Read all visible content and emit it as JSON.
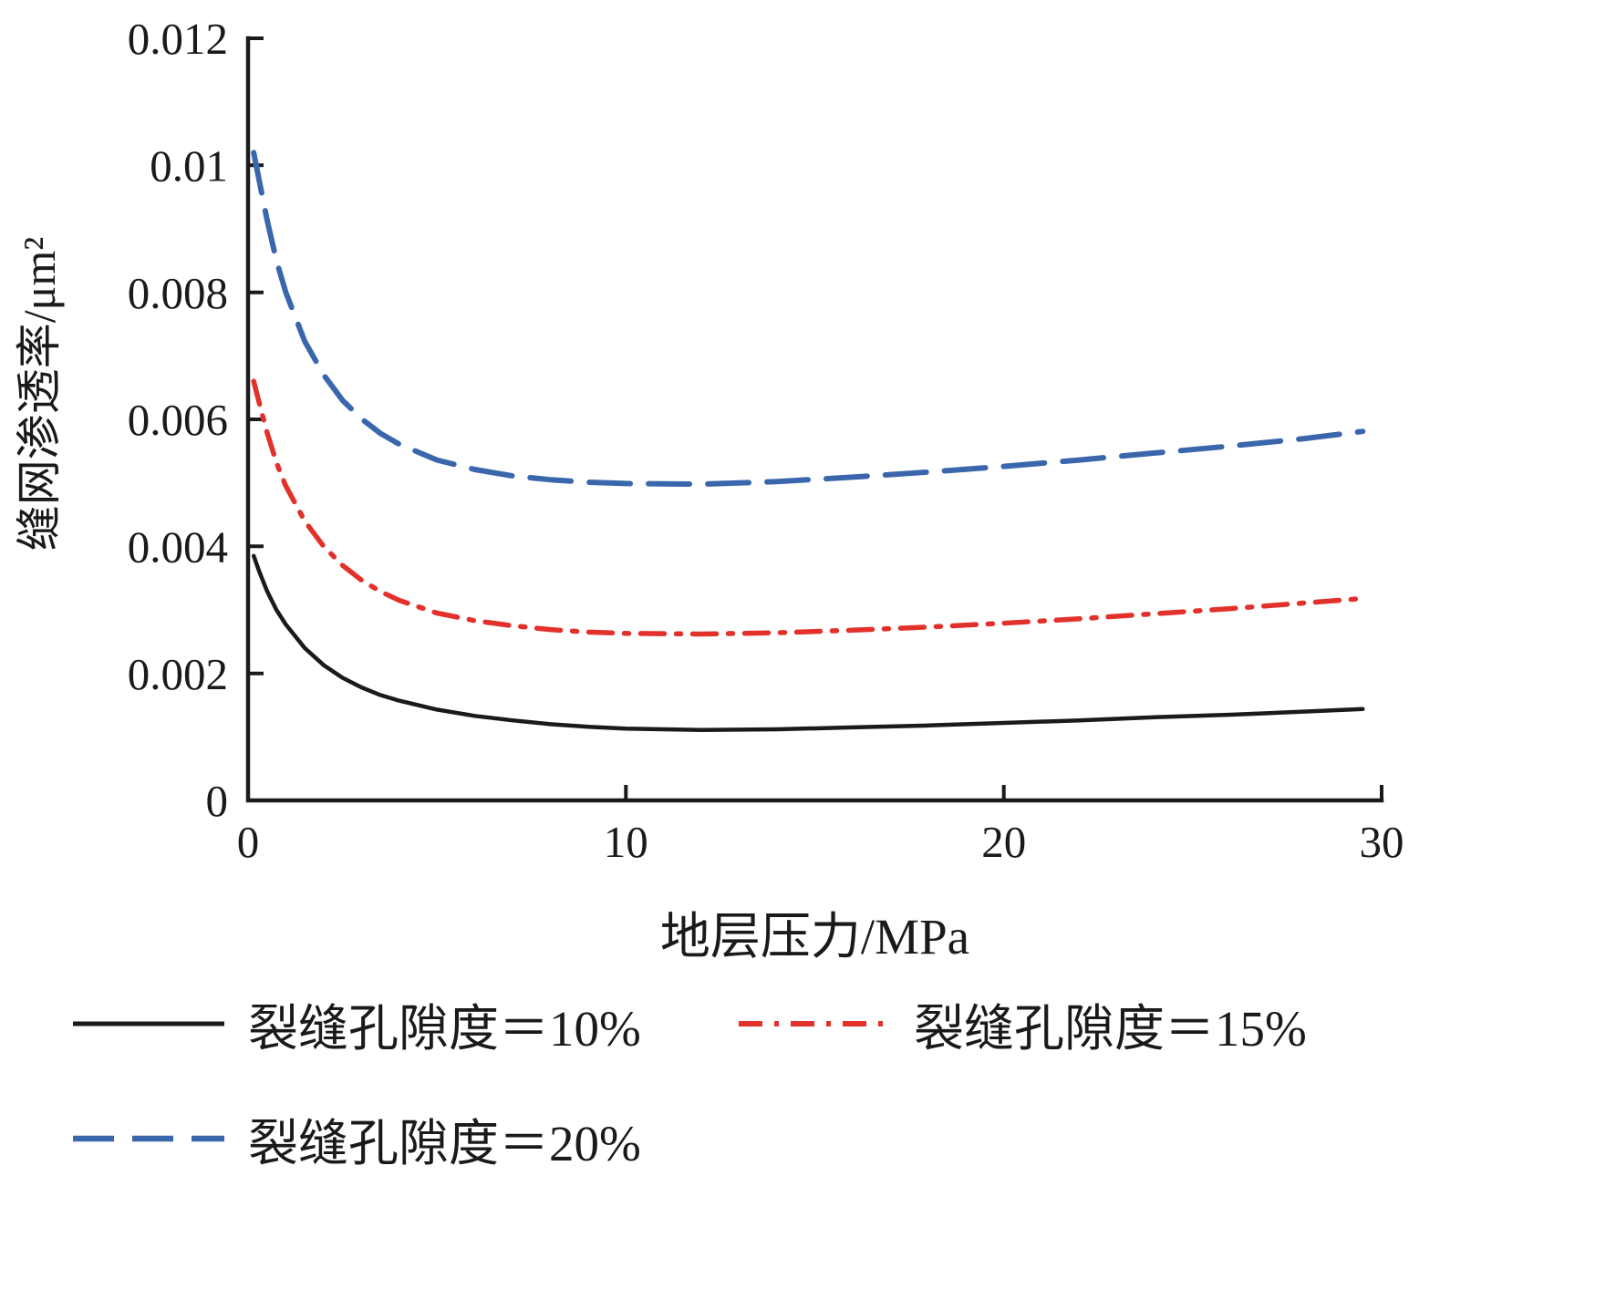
{
  "chart_data": {
    "type": "line",
    "title": "",
    "xlabel": "地层压力/MPa",
    "ylabel": "缝网渗透率/μm²",
    "xlim": [
      0,
      30
    ],
    "ylim": [
      0,
      0.012
    ],
    "grid": false,
    "legend_position": "below",
    "axis_color": "#1a1a1a",
    "background": "#ffffff",
    "xticks": {
      "values": [
        0,
        10,
        20,
        30
      ],
      "labels": [
        "0",
        "10",
        "20",
        "30"
      ]
    },
    "yticks": {
      "values": [
        0,
        0.002,
        0.004,
        0.006,
        0.008,
        0.01,
        0.012
      ],
      "labels": [
        "0",
        "0.002",
        "0.004",
        "0.006",
        "0.008",
        "0.01",
        "0.012"
      ]
    },
    "x": [
      0.15,
      0.3,
      0.5,
      0.75,
      1,
      1.5,
      2,
      2.5,
      3,
      3.5,
      4,
      5,
      6,
      7,
      8,
      9,
      10,
      12,
      14,
      16,
      18,
      20,
      22,
      24,
      26,
      28,
      29.5
    ],
    "series": [
      {
        "name": "裂缝孔隙度＝10%",
        "color": "#1a1a1a",
        "line_style": "solid",
        "dash": [],
        "width": 4.5,
        "values": [
          0.00385,
          0.0036,
          0.0033,
          0.003,
          0.00277,
          0.0024,
          0.00213,
          0.00193,
          0.00178,
          0.00166,
          0.00157,
          0.00143,
          0.00133,
          0.00126,
          0.0012,
          0.00116,
          0.00113,
          0.00111,
          0.00112,
          0.00115,
          0.00118,
          0.00122,
          0.00126,
          0.00131,
          0.00135,
          0.0014,
          0.00144
        ]
      },
      {
        "name": "裂缝孔隙度＝15%",
        "color": "#e2312a",
        "line_style": "dash-dot",
        "dash": [
          26,
          13,
          5,
          13
        ],
        "width": 5.5,
        "values": [
          0.0066,
          0.00625,
          0.0058,
          0.00532,
          0.00495,
          0.0044,
          0.004,
          0.0037,
          0.00347,
          0.00329,
          0.00315,
          0.00295,
          0.00283,
          0.00275,
          0.00269,
          0.00265,
          0.00263,
          0.00262,
          0.00264,
          0.00268,
          0.00273,
          0.00279,
          0.00286,
          0.00294,
          0.00302,
          0.00311,
          0.00318
        ]
      },
      {
        "name": "裂缝孔隙度＝20%",
        "color": "#3a66ac",
        "line_style": "dashed",
        "dash": [
          45,
          20
        ],
        "width": 6,
        "values": [
          0.0102,
          0.00975,
          0.00915,
          0.0085,
          0.008,
          0.00723,
          0.0067,
          0.0063,
          0.00601,
          0.00578,
          0.00561,
          0.00536,
          0.00521,
          0.00511,
          0.00505,
          0.00501,
          0.00499,
          0.00498,
          0.00502,
          0.00509,
          0.00517,
          0.00526,
          0.00536,
          0.00547,
          0.00558,
          0.0057,
          0.00581
        ]
      }
    ]
  }
}
